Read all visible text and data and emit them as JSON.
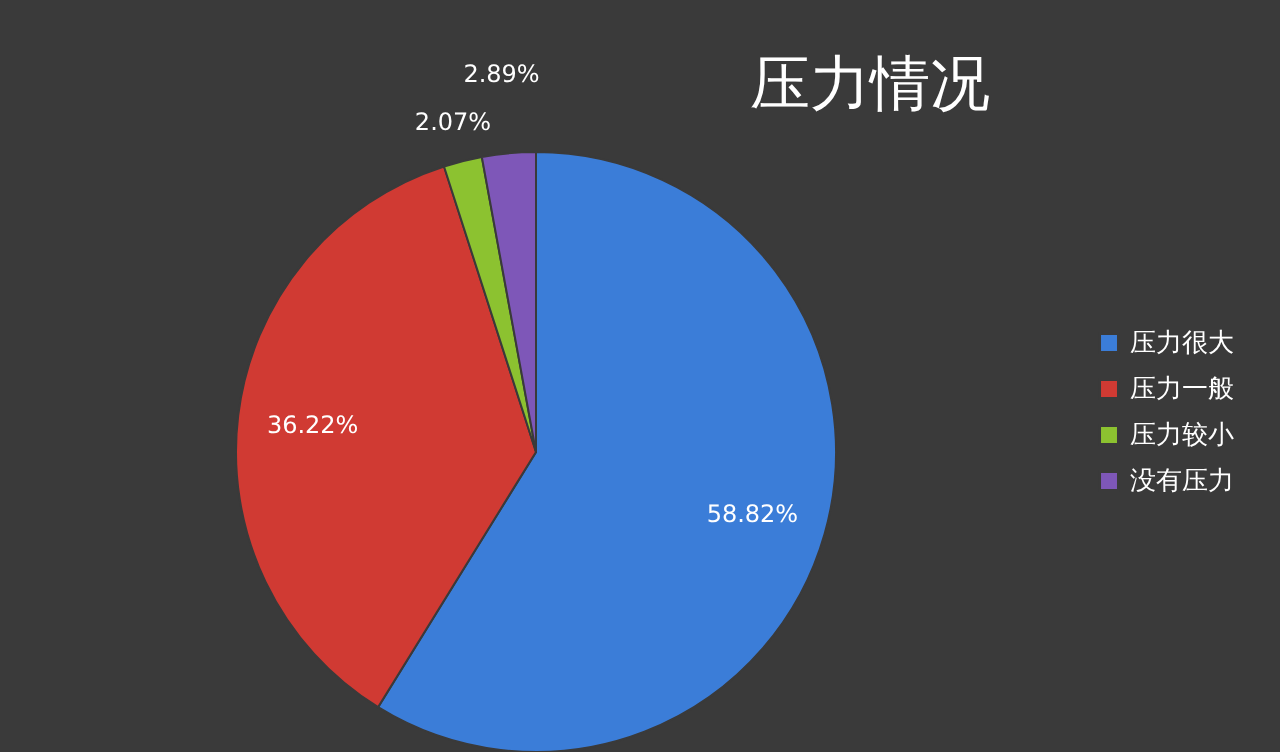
{
  "chart_data": {
    "type": "pie",
    "title": "压力情况",
    "categories": [
      "压力很大",
      "压力一般",
      "压力较小",
      "没有压力"
    ],
    "values": [
      58.82,
      36.22,
      2.07,
      2.89
    ],
    "colors": [
      "#3b7dd8",
      "#d03a33",
      "#8cc230",
      "#7e57b8"
    ],
    "value_labels": [
      "58.82%",
      "36.22%",
      "2.07%",
      "2.89%"
    ],
    "legend": "right"
  }
}
